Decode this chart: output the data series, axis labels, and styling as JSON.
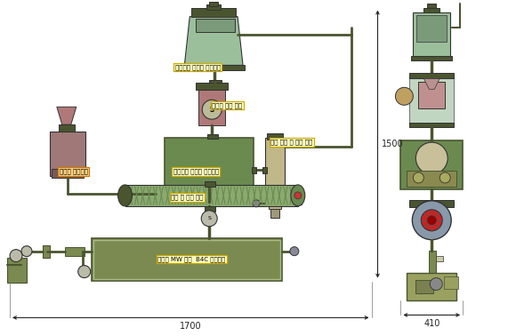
{
  "bg_color": "#ffffff",
  "labels": {
    "boric_mixer": "붕산함유 폐기물 혼합장치",
    "impurity_removal": "불순물 제거 장치",
    "activator": "활성탄 분쇄장치",
    "drying": "붕산함유 폐기물 건조장치",
    "moisture": "수분 포집 및 순환 장치",
    "mixing_transfer": "혼합 및 이송 장치",
    "mw_b4c": "고출력 MW 활용  B4C 합성장치",
    "width1": "1700",
    "width2": "410",
    "height1": "1500"
  },
  "c_tank": "#9BBF9B",
  "c_tank_dark": "#4A5535",
  "c_pink": "#B07878",
  "c_green": "#6A8A50",
  "c_green_light": "#8AAA70",
  "c_olive": "#7A8A50",
  "c_beige": "#C0B888",
  "c_dark": "#4A5530",
  "c_border": "#333333",
  "c_pipe": "#556040",
  "c_gray_blue": "#8899AA",
  "c_red_gear": "#CC2222",
  "lbl_fc_y": "#FFFFC0",
  "lbl_fc_o": "#FFD080",
  "ec_y": "#CCAA00",
  "ec_o": "#CC7700"
}
